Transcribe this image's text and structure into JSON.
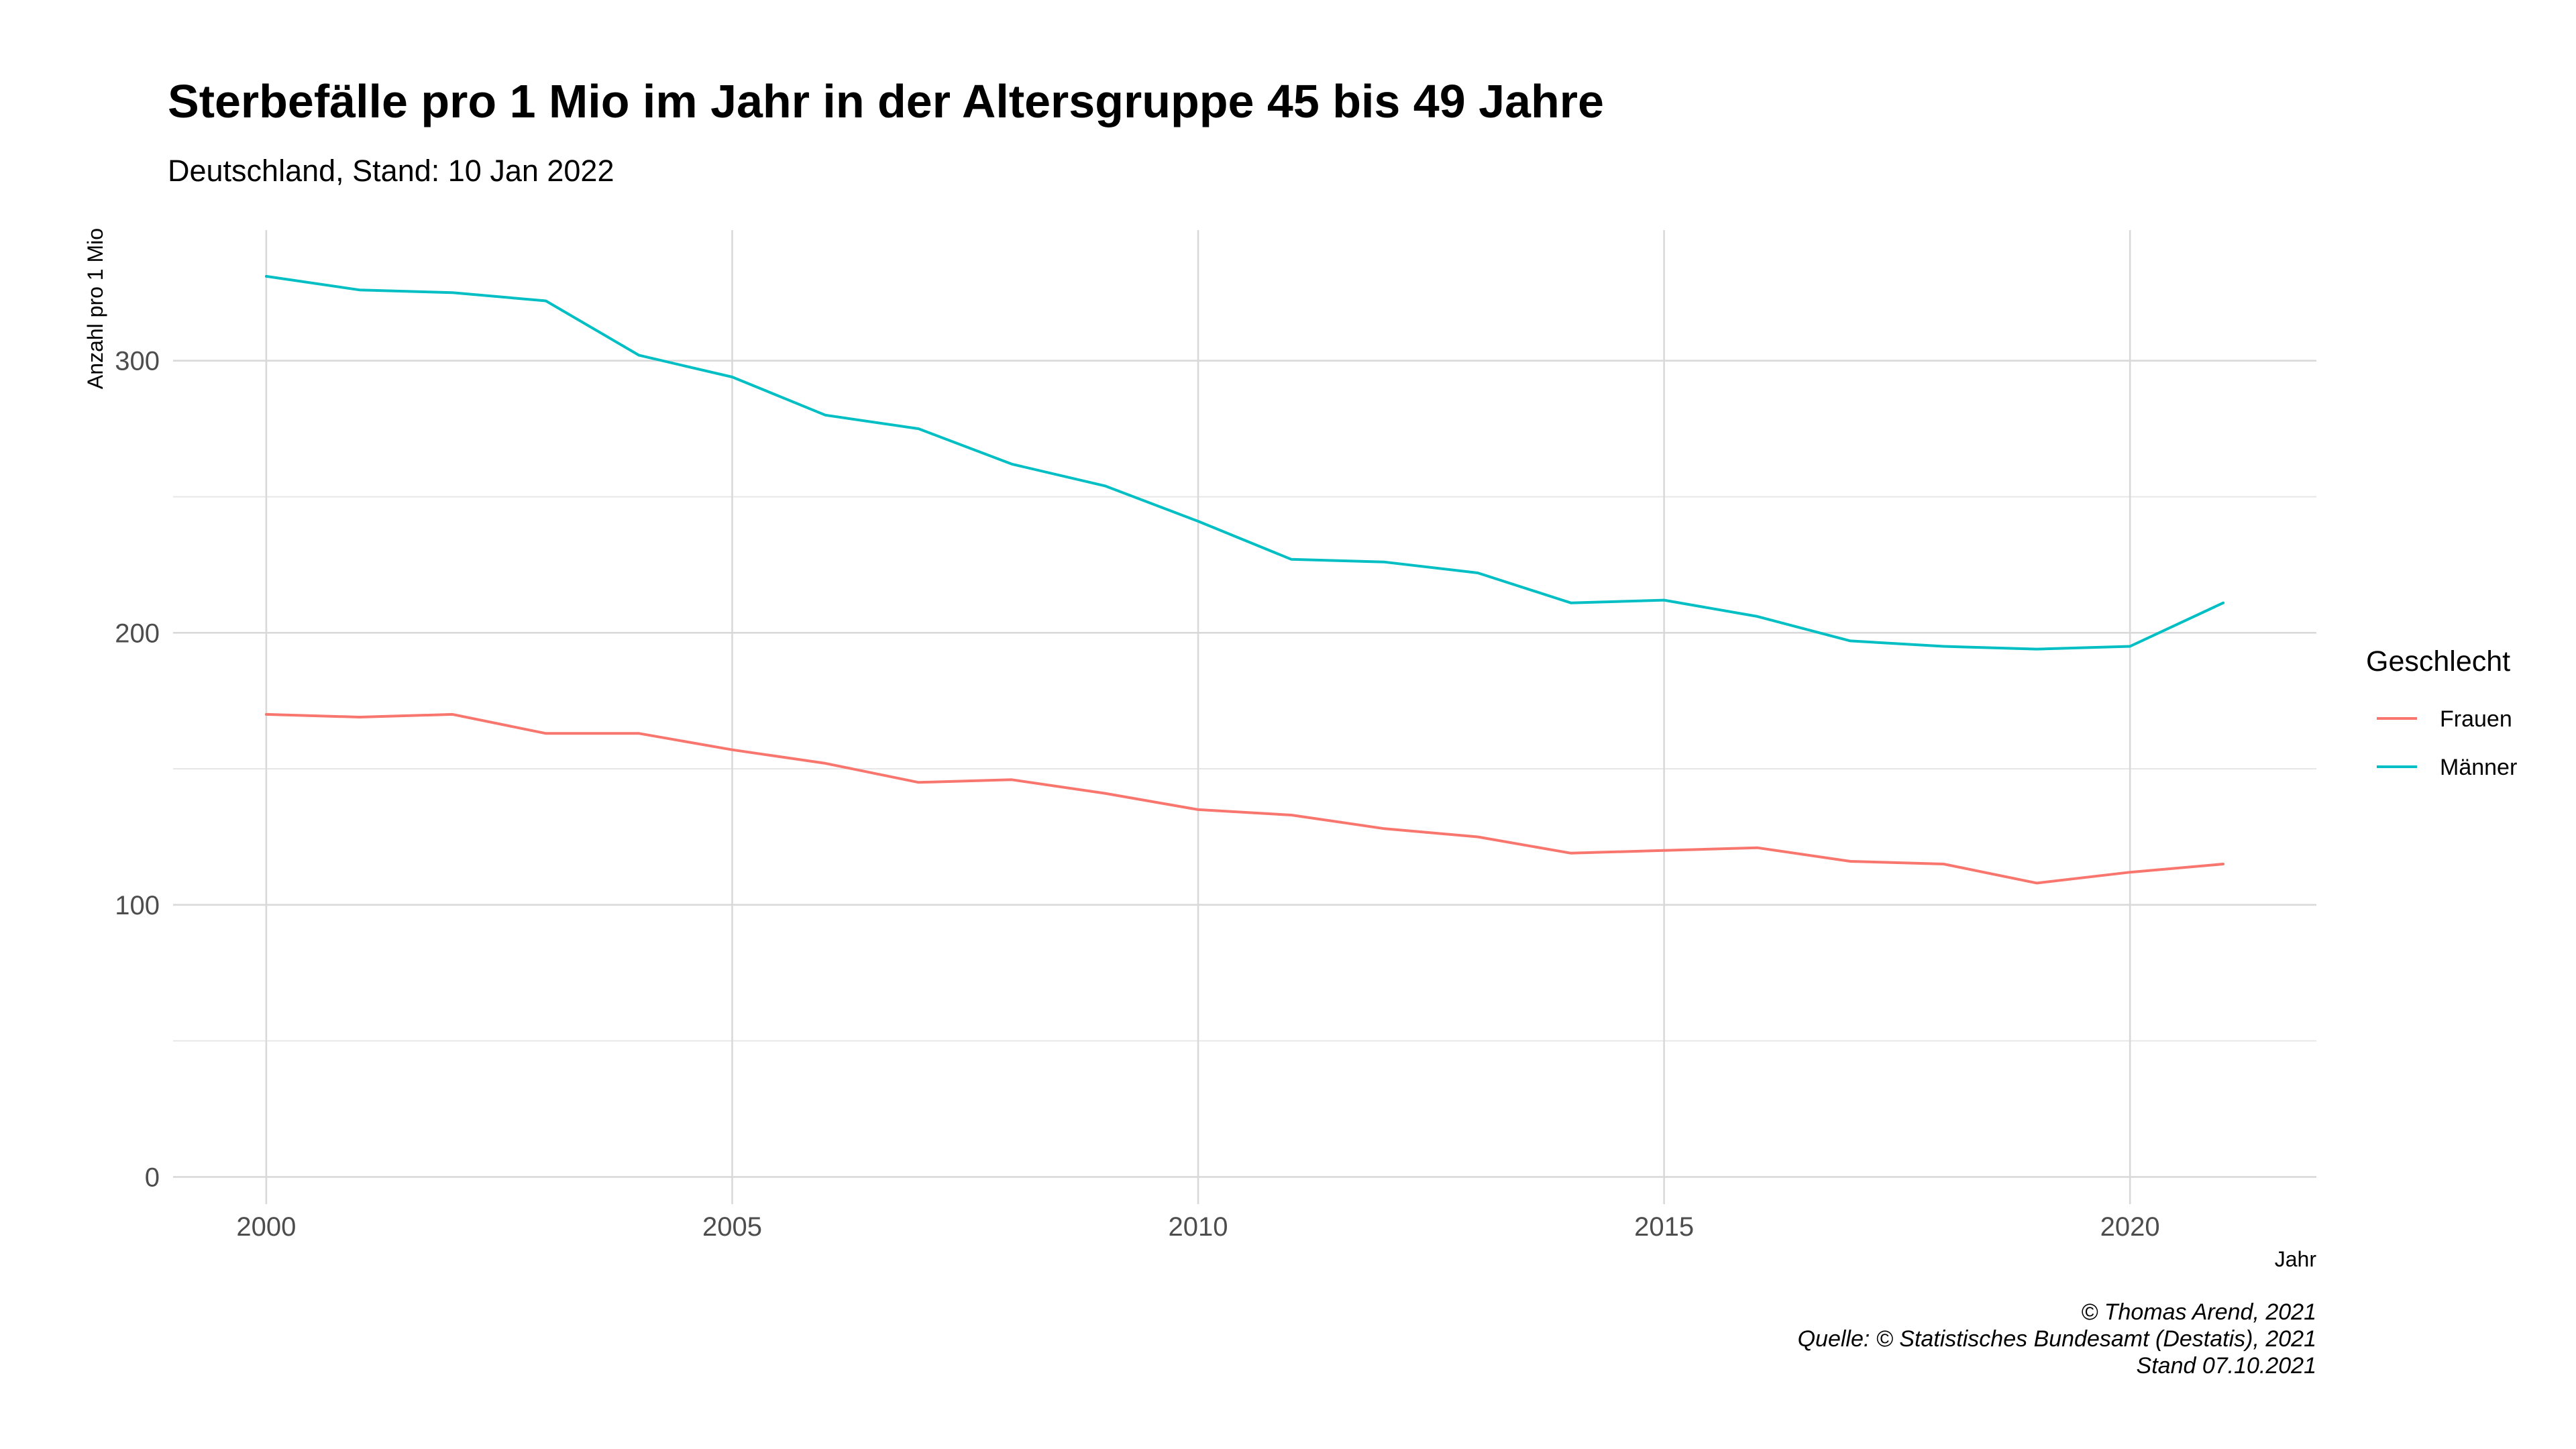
{
  "chart_data": {
    "type": "line",
    "title": "Sterbefälle pro 1 Mio im Jahr in der Altersgruppe 45 bis 49 Jahre",
    "subtitle": "Deutschland, Stand: 10 Jan 2022",
    "xlabel": "Jahr",
    "ylabel": "Anzahl pro 1 Mio",
    "xlim": [
      1999,
      2022
    ],
    "ylim": [
      -10,
      348
    ],
    "x_ticks": [
      2000,
      2005,
      2010,
      2015,
      2020
    ],
    "x_tick_labels": [
      "2000",
      "2005",
      "2010",
      "2015",
      "2020"
    ],
    "y_ticks": [
      0,
      100,
      200,
      300
    ],
    "y_tick_labels": [
      "0",
      "100",
      "200",
      "300"
    ],
    "y_minor_ticks": [
      50,
      150,
      250
    ],
    "grid": true,
    "legend": {
      "title": "Geschlecht",
      "position": "right"
    },
    "x": [
      2000,
      2001,
      2002,
      2003,
      2004,
      2005,
      2006,
      2007,
      2008,
      2009,
      2010,
      2011,
      2012,
      2013,
      2014,
      2015,
      2016,
      2017,
      2018,
      2019,
      2020,
      2021
    ],
    "series": [
      {
        "name": "Frauen",
        "color": "#F8766D",
        "values": [
          170,
          169,
          170,
          163,
          163,
          157,
          152,
          145,
          146,
          141,
          135,
          133,
          128,
          125,
          119,
          120,
          121,
          116,
          115,
          108,
          112,
          115
        ]
      },
      {
        "name": "Männer",
        "color": "#00BFC4",
        "values": [
          331,
          326,
          325,
          322,
          302,
          294,
          280,
          275,
          262,
          254,
          241,
          227,
          226,
          222,
          211,
          212,
          206,
          197,
          195,
          194,
          195,
          211
        ]
      }
    ],
    "caption": [
      "© Thomas Arend, 2021",
      "Quelle: © Statistisches Bundesamt (Destatis), 2021",
      "Stand 07.10.2021"
    ]
  }
}
